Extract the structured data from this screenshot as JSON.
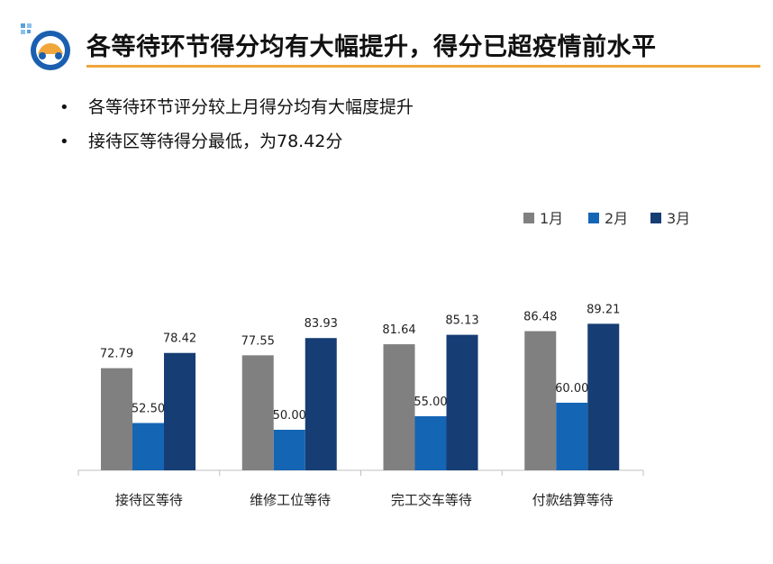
{
  "header": {
    "title": "各等待环节得分均有大幅提升，得分已超疫情前水平"
  },
  "bullets": [
    "各等待环节评分较上月得分均有大幅度提升",
    "接待区等待得分最低，为78.42分"
  ],
  "colors": {
    "accent_rule": "#f0a63a",
    "series": [
      "#808080",
      "#1565b5",
      "#163d74"
    ]
  },
  "icons": {
    "logo": "car-logo-icon"
  },
  "chart_data": {
    "type": "bar",
    "categories": [
      "接待区等待",
      "维修工位等待",
      "完工交车等待",
      "付款结算等待"
    ],
    "series": [
      {
        "name": "1月",
        "values": [
          72.79,
          77.55,
          81.64,
          86.48
        ],
        "labels": [
          "72.79",
          "77.55",
          "81.64",
          "86.48"
        ]
      },
      {
        "name": "2月",
        "values": [
          52.5,
          50.0,
          55.0,
          60.0
        ],
        "labels": [
          "52.50",
          "50.00",
          "55.00",
          "60.00"
        ]
      },
      {
        "name": "3月",
        "values": [
          78.42,
          83.93,
          85.13,
          89.21
        ],
        "labels": [
          "78.42",
          "83.93",
          "85.13",
          "89.21"
        ]
      }
    ],
    "ylim": [
      35,
      100
    ],
    "legend": "top-right",
    "grid": false
  }
}
